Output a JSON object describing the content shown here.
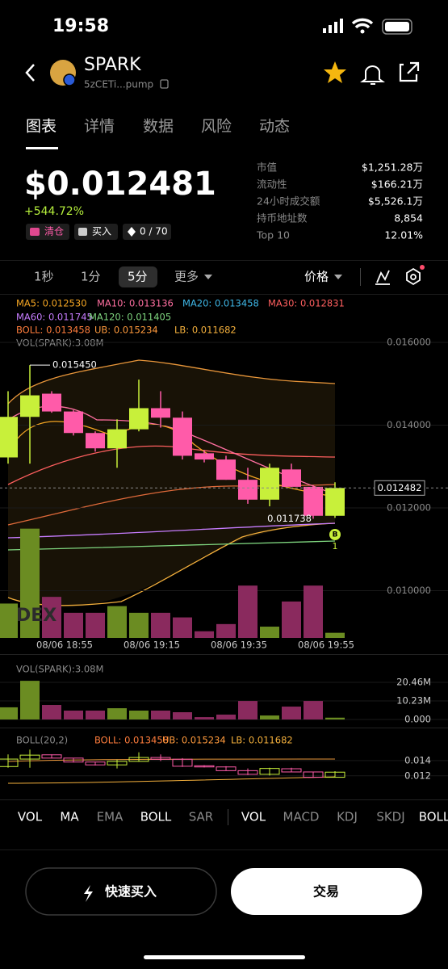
{
  "status_bar": {
    "time": "19:58"
  },
  "header": {
    "name": "SPARK",
    "address": "5zCETi...pump"
  },
  "tabs": [
    "图表",
    "详情",
    "数据",
    "风险",
    "动态"
  ],
  "price": {
    "value": "$0.012481",
    "change": "+544.72%",
    "badges": [
      "清仓",
      "买入",
      "0 / 70"
    ]
  },
  "stats": [
    {
      "label": "市值",
      "value": "$1,251.28万"
    },
    {
      "label": "流动性",
      "value": "$166.21万"
    },
    {
      "label": "24小时成交额",
      "value": "$5,526.1万"
    },
    {
      "label": "持币地址数",
      "value": "8,854"
    },
    {
      "label": "Top 10",
      "value": "12.01%"
    }
  ],
  "intervals": [
    "1秒",
    "1分",
    "5分",
    "更多"
  ],
  "price_mode": "价格",
  "indicators": [
    {
      "text": "MA5: 0.012530",
      "color": "#f5a623"
    },
    {
      "text": "MA10: 0.013136",
      "color": "#ff6fa0"
    },
    {
      "text": "MA20: 0.013458",
      "color": "#3fb8e8"
    },
    {
      "text": "MA30: 0.012831",
      "color": "#ff5f5f"
    },
    {
      "text": "MA60: 0.011745",
      "color": "#c77dff"
    },
    {
      "text": "MA120: 0.011405",
      "color": "#7fd67f"
    },
    {
      "text": "BOLL: 0.013458",
      "color": "#ff7d3c"
    },
    {
      "text": "UB: 0.015234",
      "color": "#ff9a3c"
    },
    {
      "text": "LB: 0.011682",
      "color": "#f4b03c"
    }
  ],
  "vol_label": "VOL(SPARK):3.08M",
  "chart": {
    "type": "candlestick",
    "ylim": [
      0.00886,
      0.01715
    ],
    "yticks": [
      {
        "value": 0.016,
        "label": "0.016000"
      },
      {
        "value": 0.014,
        "label": "0.014000"
      },
      {
        "value": 0.012,
        "label": "0.012000"
      },
      {
        "value": 0.01,
        "label": "0.010000"
      }
    ],
    "candles": [
      {
        "open": 0.01322,
        "high": 0.01482,
        "low": 0.01307,
        "close": 0.0142
      },
      {
        "open": 0.0142,
        "high": 0.01545,
        "low": 0.01307,
        "close": 0.01472
      },
      {
        "open": 0.01476,
        "high": 0.01482,
        "low": 0.0143,
        "close": 0.01433
      },
      {
        "open": 0.01433,
        "high": 0.01436,
        "low": 0.01375,
        "close": 0.01381
      },
      {
        "open": 0.01381,
        "high": 0.01385,
        "low": 0.01336,
        "close": 0.01344
      },
      {
        "open": 0.01344,
        "high": 0.01414,
        "low": 0.01297,
        "close": 0.0139
      },
      {
        "open": 0.0139,
        "high": 0.0151,
        "low": 0.01385,
        "close": 0.01441
      },
      {
        "open": 0.01441,
        "high": 0.01482,
        "low": 0.01394,
        "close": 0.01418
      },
      {
        "open": 0.01418,
        "high": 0.01433,
        "low": 0.01317,
        "close": 0.01326
      },
      {
        "open": 0.01332,
        "high": 0.0134,
        "low": 0.0131,
        "close": 0.01317
      },
      {
        "open": 0.01317,
        "high": 0.01326,
        "low": 0.01268,
        "close": 0.01268
      },
      {
        "open": 0.01268,
        "high": 0.01297,
        "low": 0.0121,
        "close": 0.0122
      },
      {
        "open": 0.0122,
        "high": 0.01307,
        "low": 0.01204,
        "close": 0.01297
      },
      {
        "open": 0.01293,
        "high": 0.01307,
        "low": 0.01251,
        "close": 0.01251
      },
      {
        "open": 0.01251,
        "high": 0.01255,
        "low": 0.011738,
        "close": 0.01181
      },
      {
        "open": 0.01181,
        "high": 0.01262,
        "low": 0.01176,
        "close": 0.012482
      }
    ],
    "volumes": [
      6.7,
      21.3,
      8.0,
      4.9,
      4.9,
      6.2,
      4.9,
      4.9,
      4.0,
      1.3,
      2.7,
      10.2,
      2.2,
      7.1,
      10.2,
      1.0
    ],
    "volume_ylim": [
      0,
      20.46
    ],
    "time_labels": [
      "08/06 18:55",
      "08/06 19:15",
      "08/06 19:35",
      "08/06 19:55"
    ],
    "high_label": "0.015450",
    "low_label": "0.011738",
    "price_tag": "0.012482",
    "buy_marker": "B",
    "buy_count": "1",
    "up_color": "#c8f03a",
    "down_color": "#ff5ba9",
    "up_volume_color": "#6b8c22",
    "down_volume_color": "#8a2a5e"
  },
  "vol_pane": {
    "title": "VOL(SPARK):3.08M",
    "yticks": [
      {
        "value": 20.46,
        "label": "20.46M"
      },
      {
        "value": 10.23,
        "label": "10.23M"
      },
      {
        "value": 0,
        "label": "0.000"
      }
    ]
  },
  "boll_pane": {
    "title": "BOLL(20,2)",
    "indicators": [
      {
        "text": "BOLL: 0.013458",
        "color": "#ff7d3c"
      },
      {
        "text": "UB: 0.015234",
        "color": "#ff9a3c"
      },
      {
        "text": "LB: 0.011682",
        "color": "#f4b03c"
      }
    ],
    "ylim": [
      0.0089,
      0.0176
    ],
    "yticks": [
      0.014,
      0.012
    ]
  },
  "indicator_tabs": [
    "VOL",
    "MA",
    "EMA",
    "BOLL",
    "SAR",
    "VOL",
    "MACD",
    "KDJ",
    "SKDJ",
    "BOLL"
  ],
  "buttons": {
    "quick_buy": "快速买入",
    "trade": "交易"
  }
}
